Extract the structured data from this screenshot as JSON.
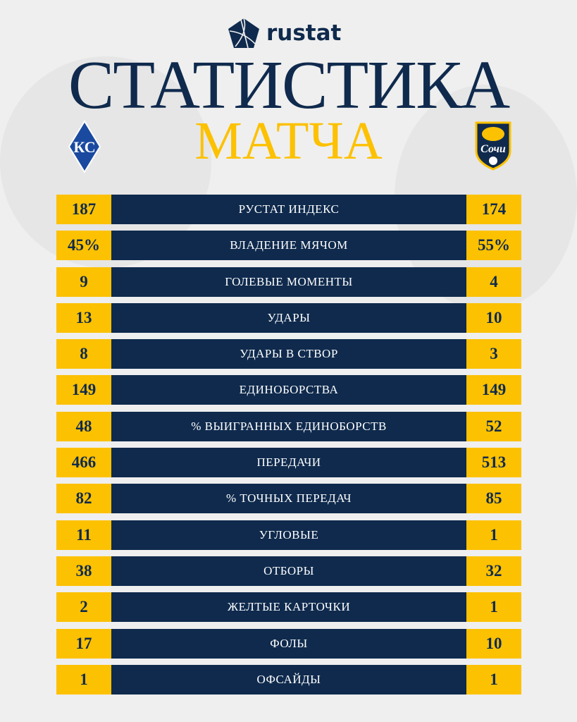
{
  "brand": {
    "name": "rustat"
  },
  "header": {
    "title": "СТАТИСТИКА",
    "subtitle": "МАТЧА"
  },
  "teams": {
    "home": "Крылья Советов",
    "away": "Сочи"
  },
  "colors": {
    "navy": "#0f2a4d",
    "yellow": "#fcc100",
    "background": "#efefef"
  },
  "stats": [
    {
      "label": "РУСТАТ ИНДЕКС",
      "home": "187",
      "away": "174"
    },
    {
      "label": "ВЛАДЕНИЕ МЯЧОМ",
      "home": "45%",
      "away": "55%"
    },
    {
      "label": "ГОЛЕВЫЕ МОМЕНТЫ",
      "home": "9",
      "away": "4"
    },
    {
      "label": "УДАРЫ",
      "home": "13",
      "away": "10"
    },
    {
      "label": "УДАРЫ В СТВОР",
      "home": "8",
      "away": "3"
    },
    {
      "label": "ЕДИНОБОРСТВА",
      "home": "149",
      "away": "149"
    },
    {
      "label": "% ВЫИГРАННЫХ ЕДИНОБОРСТВ",
      "home": "48",
      "away": "52"
    },
    {
      "label": "ПЕРЕДАЧИ",
      "home": "466",
      "away": "513"
    },
    {
      "label": "% ТОЧНЫХ ПЕРЕДАЧ",
      "home": "82",
      "away": "85"
    },
    {
      "label": "УГЛОВЫЕ",
      "home": "11",
      "away": "1"
    },
    {
      "label": "ОТБОРЫ",
      "home": "38",
      "away": "32"
    },
    {
      "label": "ЖЕЛТЫЕ КАРТОЧКИ",
      "home": "2",
      "away": "1"
    },
    {
      "label": "ФОЛЫ",
      "home": "17",
      "away": "10"
    },
    {
      "label": "ОФСАЙДЫ",
      "home": "1",
      "away": "1"
    }
  ]
}
